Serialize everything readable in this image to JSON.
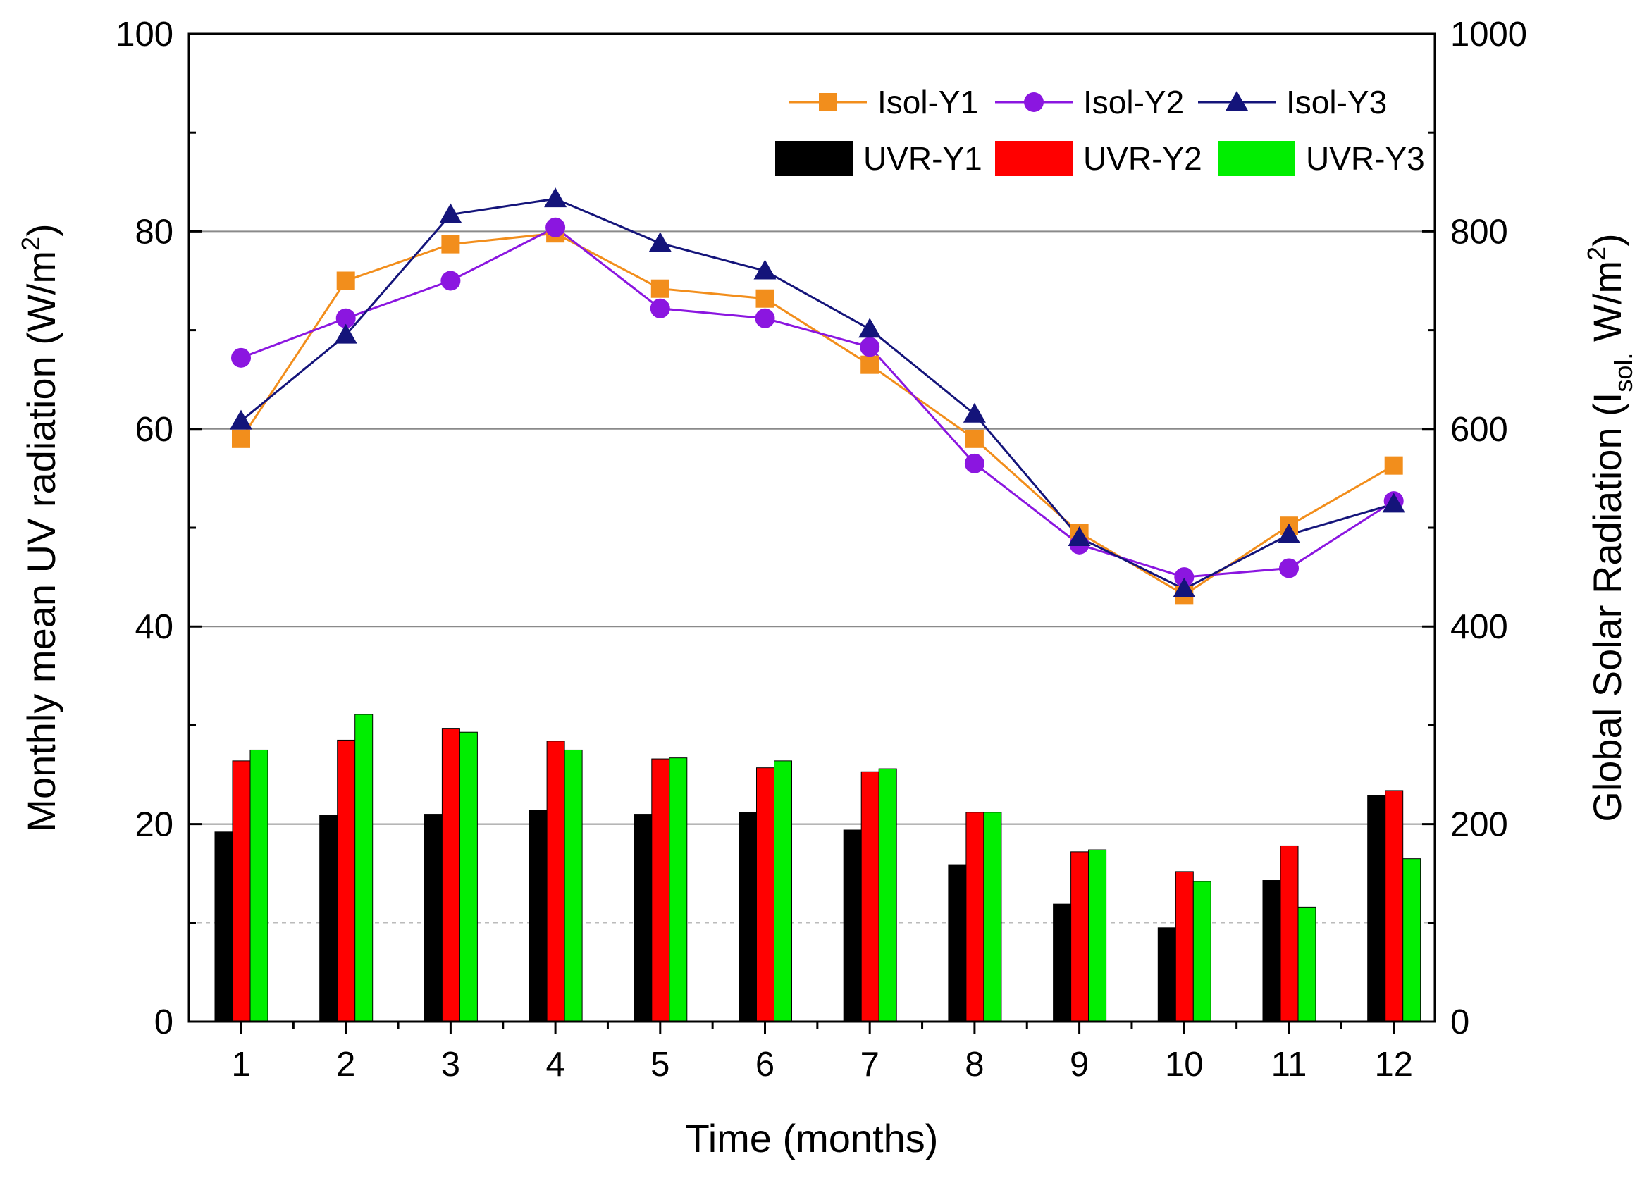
{
  "chart_data": {
    "type": "bar+line",
    "x_label": "Time (months)",
    "y_left_label": "Monthly mean UV radiation (W/m²)",
    "y_right_label": "Global Solar Radiation (I_sol. W/m²)",
    "y_left_range": [
      0,
      100
    ],
    "y_right_range": [
      0,
      1000
    ],
    "x_ticks": [
      "1",
      "2",
      "3",
      "4",
      "5",
      "6",
      "7",
      "8",
      "9",
      "10",
      "11",
      "12"
    ],
    "y_left_ticks": [
      "0",
      "20",
      "40",
      "60",
      "80",
      "100"
    ],
    "y_right_ticks": [
      "0",
      "200",
      "400",
      "600",
      "800",
      "1000"
    ],
    "gridlines": "horizontal at 20, 40, 60, 80",
    "legend_position": "top-right",
    "bar_series": [
      {
        "name": "UVR-Y1",
        "color": "#000000",
        "axis": "left",
        "values": [
          19.2,
          20.9,
          21.0,
          21.4,
          21.0,
          21.2,
          19.4,
          15.9,
          11.9,
          9.5,
          14.3,
          22.9
        ]
      },
      {
        "name": "UVR-Y2",
        "color": "#ff0000",
        "axis": "left",
        "values": [
          26.4,
          28.5,
          29.7,
          28.4,
          26.6,
          25.7,
          25.3,
          21.2,
          17.2,
          15.2,
          17.8,
          23.4
        ]
      },
      {
        "name": "UVR-Y3",
        "color": "#00ee00",
        "axis": "left",
        "values": [
          27.5,
          31.1,
          29.3,
          27.5,
          26.7,
          26.4,
          25.6,
          21.2,
          17.4,
          14.2,
          11.6,
          16.5
        ]
      }
    ],
    "line_series": [
      {
        "name": "Isol-Y1",
        "color": "#f28e1c",
        "marker": "square",
        "axis": "right",
        "values": [
          590,
          750,
          787,
          798,
          742,
          732,
          665,
          590,
          495,
          432,
          502,
          563
        ]
      },
      {
        "name": "Isol-Y2",
        "color": "#8b16e0",
        "marker": "circle",
        "axis": "right",
        "values": [
          672,
          712,
          750,
          804,
          722,
          712,
          683,
          565,
          483,
          450,
          459,
          527
        ]
      },
      {
        "name": "Isol-Y3",
        "color": "#14147a",
        "marker": "triangle",
        "axis": "right",
        "values": [
          608,
          695,
          817,
          833,
          788,
          760,
          701,
          615,
          490,
          438,
          493,
          524
        ]
      }
    ]
  }
}
